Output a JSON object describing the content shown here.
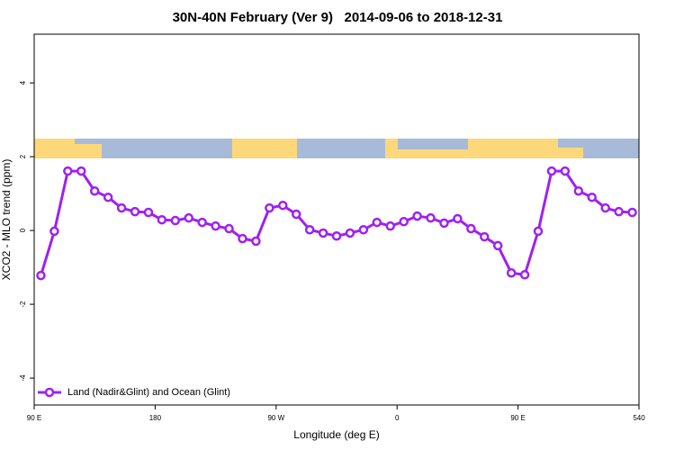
{
  "chart_data": {
    "type": "line",
    "title": "30N-40N February (Ver 9)   2014-09-06 to 2018-12-31",
    "x_label": "Longitude (deg E)",
    "y_label": "XCO2 - MLO trend (ppm)",
    "x": [
      95,
      105,
      115,
      125,
      135,
      145,
      155,
      165,
      175,
      185,
      195,
      205,
      215,
      225,
      235,
      245,
      255,
      265,
      275,
      285,
      295,
      305,
      315,
      325,
      335,
      345,
      355,
      365,
      375,
      385,
      395,
      405,
      415,
      425,
      435,
      445,
      455,
      465,
      475,
      485,
      495,
      505,
      515,
      525,
      535
    ],
    "series": [
      {
        "name": "Land (Nadir&Glint) and Ocean (Glint)",
        "color": "#a020f0",
        "values": [
          -1.22,
          -0.02,
          1.61,
          1.61,
          1.07,
          0.9,
          0.61,
          0.51,
          0.49,
          0.29,
          0.27,
          0.34,
          0.22,
          0.12,
          0.05,
          -0.22,
          -0.29,
          0.61,
          0.68,
          0.44,
          0.02,
          -0.07,
          -0.15,
          -0.07,
          0.02,
          0.22,
          0.12,
          0.24,
          0.39,
          0.34,
          0.2,
          0.32,
          0.05,
          -0.17,
          -0.41,
          -1.15,
          -1.2,
          -0.02,
          1.61,
          1.61,
          1.07,
          0.9,
          0.61,
          0.51,
          0.49
        ]
      }
    ],
    "xlim": [
      90,
      540
    ],
    "xticks": [
      {
        "value": 90,
        "label": "90 E"
      },
      180,
      {
        "value": 270,
        "label": "90 W"
      },
      {
        "value": 360,
        "label": "0"
      },
      {
        "value": 450,
        "label": "90 E"
      },
      540
    ],
    "ylim": [
      -4.73,
      5.32
    ],
    "yticks": [
      -4,
      -2,
      0,
      2,
      4
    ],
    "legend": "bottom-left"
  }
}
